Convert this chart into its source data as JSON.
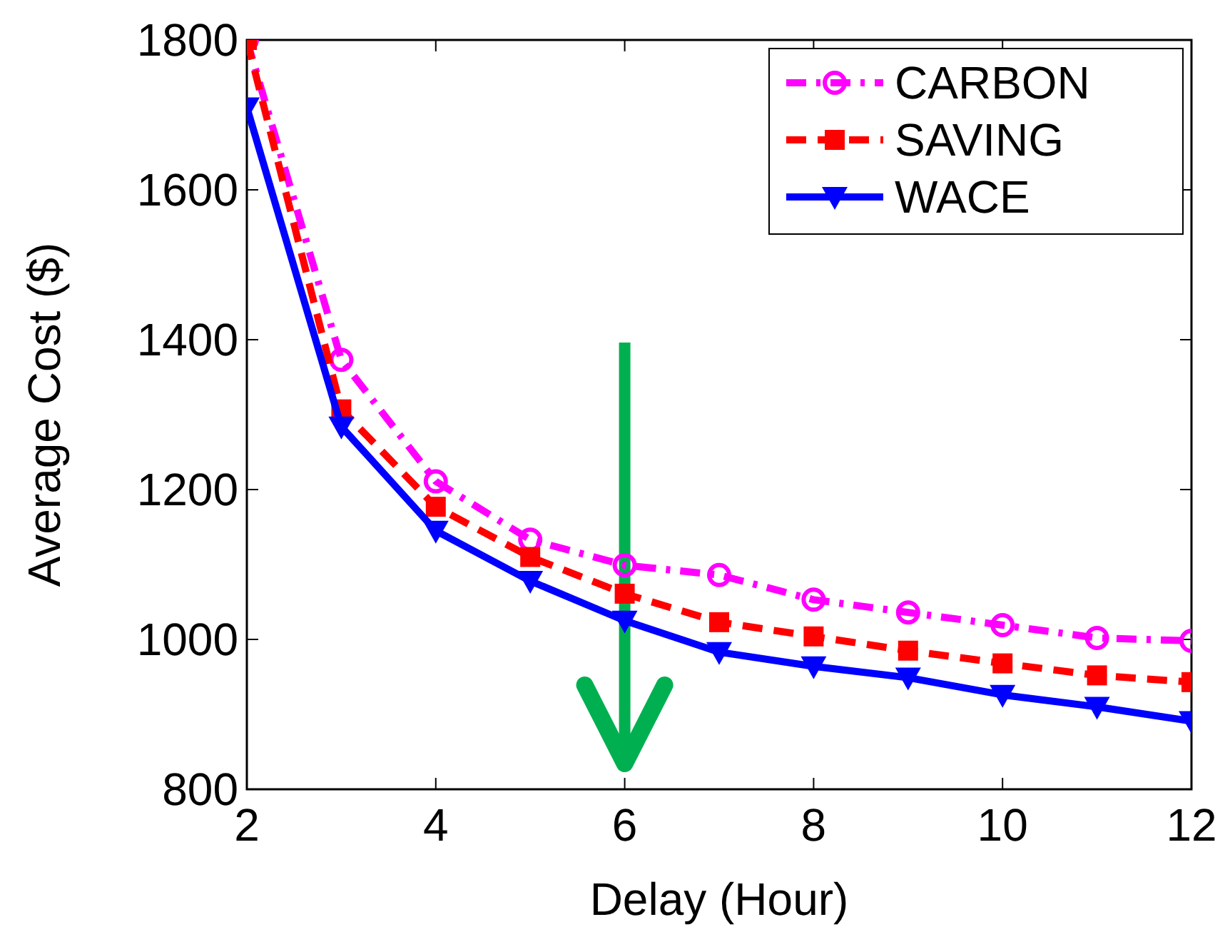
{
  "chart_data": {
    "type": "line",
    "xlabel": "Delay (Hour)",
    "ylabel": "Average Cost ($)",
    "x": [
      2,
      3,
      4,
      5,
      6,
      7,
      8,
      9,
      10,
      11,
      12
    ],
    "xlim": [
      2,
      12
    ],
    "xticks": [
      2,
      4,
      6,
      8,
      10,
      12
    ],
    "ylim": [
      800,
      1800
    ],
    "yticks": [
      800,
      1000,
      1200,
      1400,
      1600,
      1800
    ],
    "legend": "top right",
    "series": [
      {
        "name": "CARBON",
        "color": "#ff00ff",
        "marker": "circle",
        "line_style": "dashdot",
        "values": [
          1800,
          1373,
          1211,
          1133,
          1099,
          1086,
          1053,
          1036,
          1019,
          1002,
          998
        ]
      },
      {
        "name": "SAVING",
        "color": "#ff0000",
        "marker": "square",
        "line_style": "dashed",
        "values": [
          1800,
          1307,
          1177,
          1110,
          1061,
          1023,
          1004,
          985,
          968,
          952,
          943
        ]
      },
      {
        "name": "WACE",
        "color": "#0000ff",
        "marker": "triangle",
        "line_style": "solid",
        "values": [
          1710,
          1284,
          1145,
          1078,
          1025,
          983,
          964,
          949,
          926,
          910,
          891
        ]
      }
    ]
  }
}
